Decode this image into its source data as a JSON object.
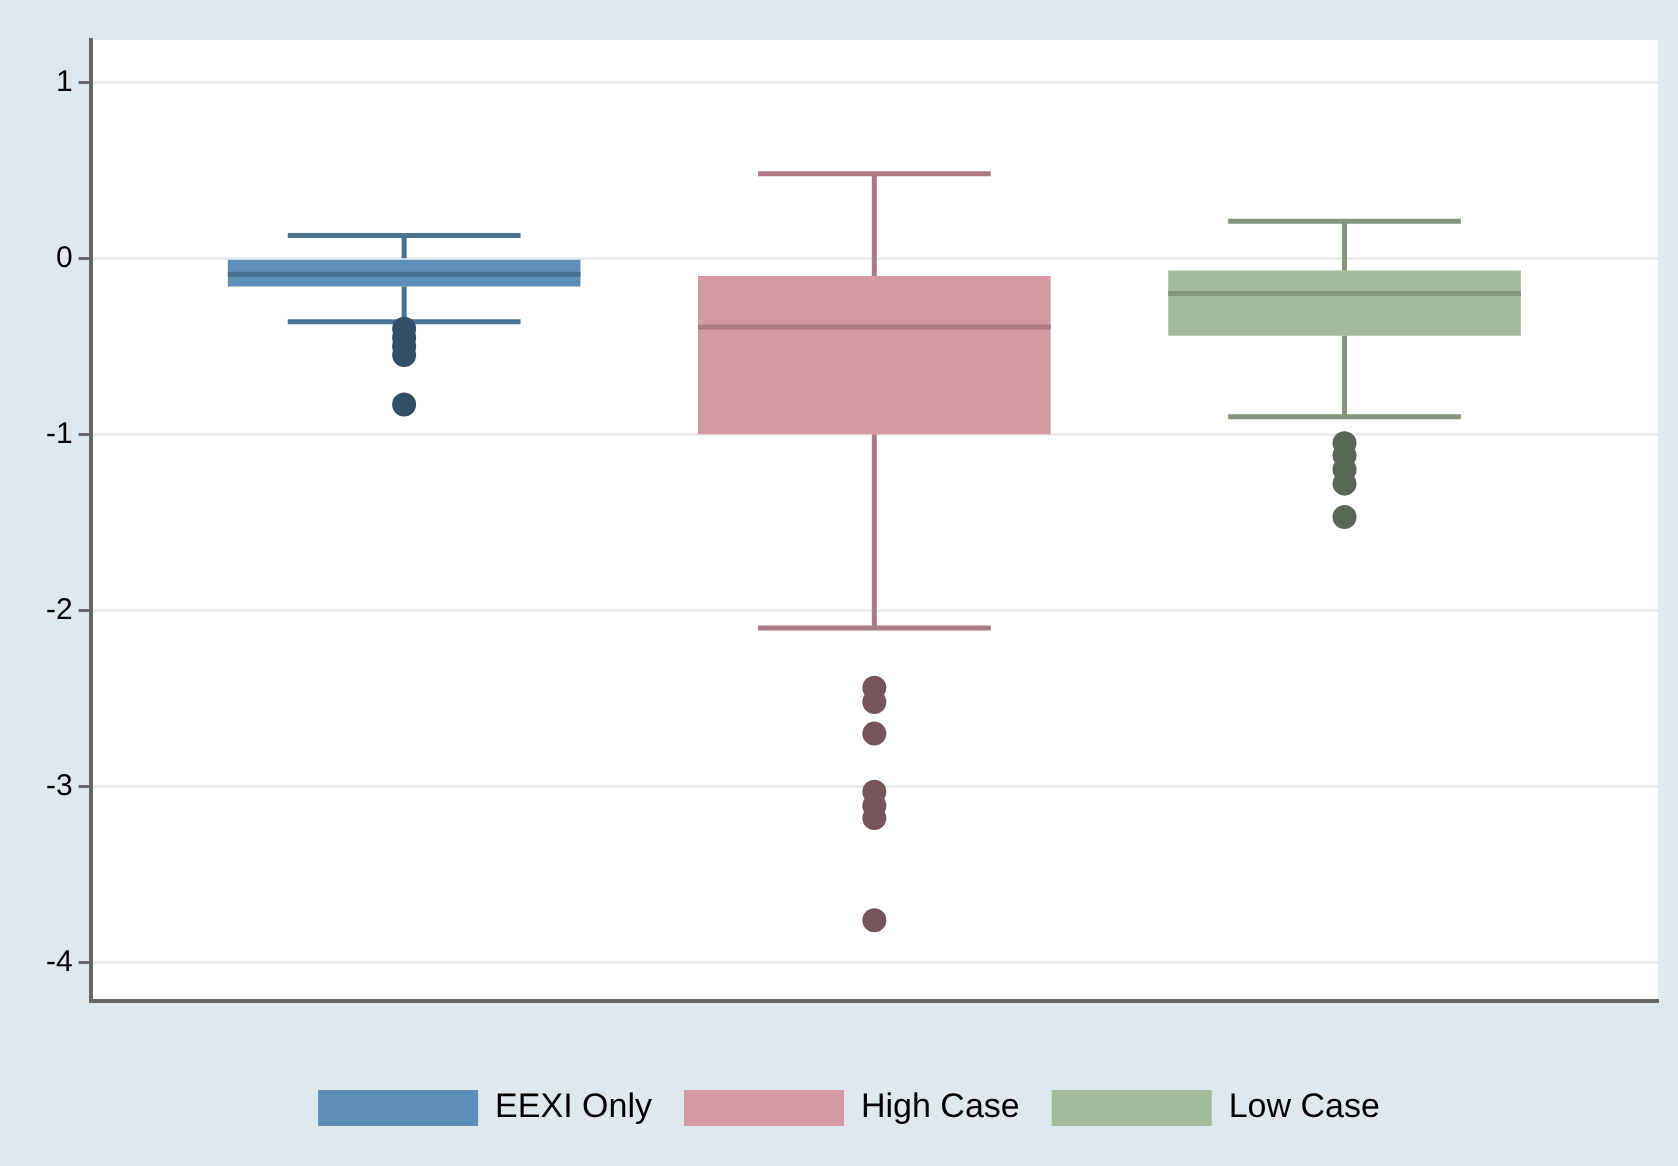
{
  "chart_data": {
    "type": "box",
    "categories": [
      null
    ],
    "series": [
      {
        "name": "EEXI Only",
        "color": "#5f8fb8",
        "boxes": [
          {
            "low": -0.36,
            "q1": -0.16,
            "median": -0.09,
            "q3": 0.0,
            "high": 0.13,
            "outliers": [
              -0.4,
              -0.45,
              -0.5,
              -0.55,
              -0.83
            ]
          }
        ]
      },
      {
        "name": "High Case",
        "color": "#d49aa2",
        "boxes": [
          {
            "low": -2.1,
            "q1": -1.0,
            "median": -0.39,
            "q3": -0.1,
            "high": 0.48,
            "outliers": [
              -2.44,
              -2.52,
              -2.7,
              -3.03,
              -3.11,
              -3.18,
              -3.76
            ]
          }
        ]
      },
      {
        "name": "Low Case",
        "color": "#a4ba9c",
        "boxes": [
          {
            "low": -0.9,
            "q1": -0.44,
            "median": -0.2,
            "q3": -0.07,
            "high": 0.21,
            "outliers": [
              -1.05,
              -1.12,
              -1.2,
              -1.28,
              -1.47
            ]
          }
        ]
      }
    ],
    "ylim": [
      -4.22,
      1.24
    ],
    "yticks": [
      -4,
      -3,
      -2,
      -1,
      0,
      1
    ],
    "grid": "y",
    "legend": "bottom"
  }
}
